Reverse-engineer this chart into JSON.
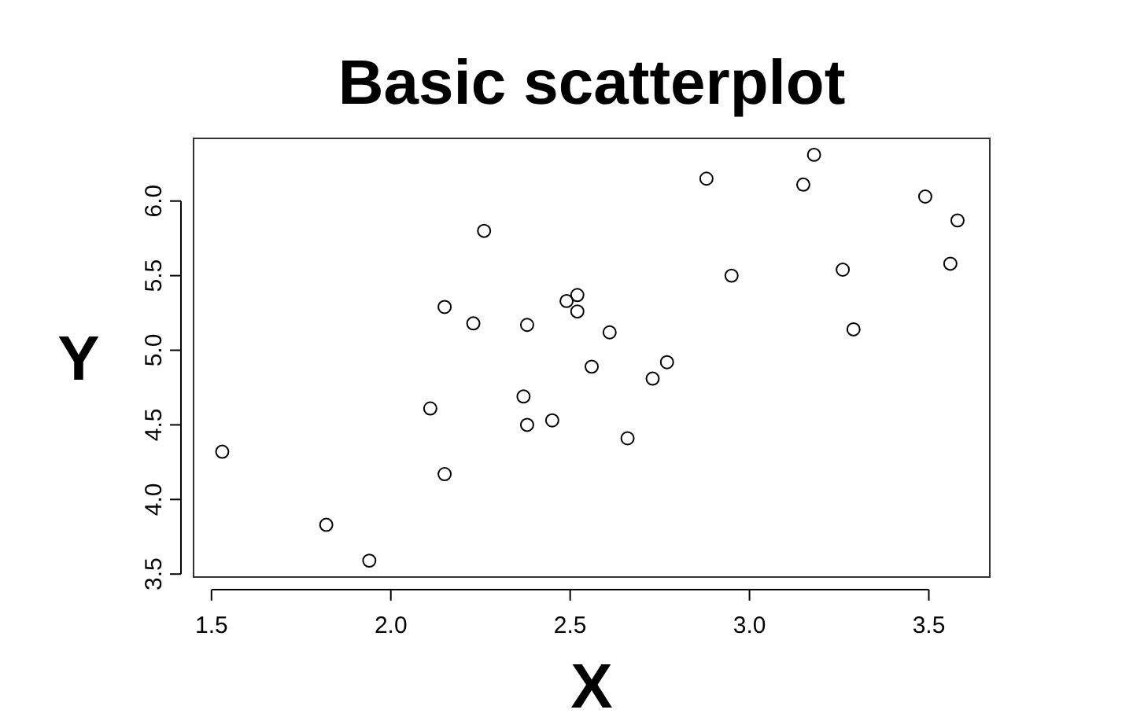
{
  "chart_data": {
    "type": "scatter",
    "title": "Basic scatterplot",
    "xlabel": "X",
    "ylabel": "Y",
    "marker": "circle",
    "grid": false,
    "x": [
      1.53,
      1.82,
      1.94,
      2.11,
      2.15,
      2.15,
      2.23,
      2.26,
      2.37,
      2.38,
      2.38,
      2.45,
      2.49,
      2.52,
      2.52,
      2.56,
      2.61,
      2.77,
      2.73,
      2.66,
      2.88,
      2.95,
      3.15,
      3.18,
      3.26,
      3.29,
      3.49,
      3.58,
      3.56
    ],
    "values": [
      4.32,
      3.83,
      3.59,
      4.61,
      5.29,
      4.17,
      5.18,
      5.8,
      4.69,
      4.5,
      5.17,
      4.53,
      5.33,
      5.37,
      5.26,
      4.89,
      5.12,
      4.92,
      4.81,
      4.41,
      6.15,
      5.5,
      6.11,
      6.31,
      5.54,
      5.14,
      6.03,
      5.87,
      5.58
    ],
    "color": "#000000",
    "xlim": [
      1.45,
      3.67
    ],
    "ylim": [
      3.48,
      6.42
    ],
    "xticks": [
      {
        "value": 1.5,
        "label": "1.5"
      },
      {
        "value": 2,
        "label": "2.0"
      },
      {
        "value": 2.5,
        "label": "2.5"
      },
      {
        "value": 3,
        "label": "3.0"
      },
      {
        "value": 3.5,
        "label": "3.5"
      }
    ],
    "yticks": [
      {
        "value": 3.5,
        "label": "3.5"
      },
      {
        "value": 4,
        "label": "4.0"
      },
      {
        "value": 4.5,
        "label": "4.5"
      },
      {
        "value": 5,
        "label": "5.0"
      },
      {
        "value": 5.5,
        "label": "5.5"
      },
      {
        "value": 6,
        "label": "6.0"
      }
    ]
  }
}
